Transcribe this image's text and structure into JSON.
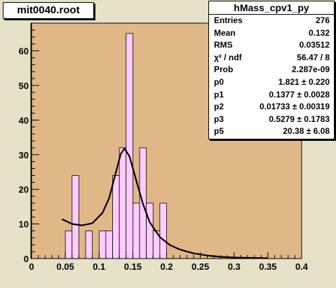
{
  "title_box": "mit0040.root",
  "stats": {
    "title": "hMass_cpv1_py",
    "rows": [
      {
        "k": "Entries",
        "v": "276"
      },
      {
        "k": "Mean",
        "v": "0.132"
      },
      {
        "k": "RMS",
        "v": "0.03512"
      },
      {
        "k": "χ² / ndf",
        "v": "56.47 / 8"
      },
      {
        "k": "Prob",
        "v": "2.287e-09"
      },
      {
        "k": "p0",
        "v": "1.821 ± 0.220"
      },
      {
        "k": "p1",
        "v": "0.1377 ± 0.0028"
      },
      {
        "k": "p2",
        "v": "0.01733 ± 0.00319"
      },
      {
        "k": "p3",
        "v": "0.5279 ± 0.1783"
      },
      {
        "k": "p5",
        "v": "20.38 ± 6.08"
      }
    ]
  },
  "colors": {
    "frame_bg": "#e0b888",
    "bar_fill": "#ffccff",
    "page_bg": "#e6e2c8"
  },
  "chart_data": {
    "type": "bar",
    "title": "",
    "xlabel": "",
    "ylabel": "",
    "xlim": [
      0,
      0.4
    ],
    "ylim": [
      0,
      68
    ],
    "x_ticks": [
      0,
      0.05,
      0.1,
      0.15,
      0.2,
      0.25,
      0.3,
      0.35,
      0.4
    ],
    "y_ticks": [
      0,
      10,
      20,
      30,
      40,
      50,
      60
    ],
    "bin_width": 0.01,
    "bins": [
      {
        "x": 0.05,
        "y": 8
      },
      {
        "x": 0.06,
        "y": 24
      },
      {
        "x": 0.07,
        "y": 0
      },
      {
        "x": 0.08,
        "y": 8
      },
      {
        "x": 0.09,
        "y": 0
      },
      {
        "x": 0.1,
        "y": 8
      },
      {
        "x": 0.11,
        "y": 8
      },
      {
        "x": 0.12,
        "y": 24
      },
      {
        "x": 0.13,
        "y": 32
      },
      {
        "x": 0.14,
        "y": 65
      },
      {
        "x": 0.15,
        "y": 16
      },
      {
        "x": 0.16,
        "y": 32
      },
      {
        "x": 0.17,
        "y": 16
      },
      {
        "x": 0.18,
        "y": 8
      },
      {
        "x": 0.19,
        "y": 16
      },
      {
        "x": 0.2,
        "y": 0
      }
    ],
    "fit": {
      "x_range": [
        0.045,
        0.35
      ],
      "x": [
        0.045,
        0.06,
        0.075,
        0.09,
        0.105,
        0.115,
        0.125,
        0.132,
        0.1377,
        0.145,
        0.155,
        0.165,
        0.175,
        0.19,
        0.205,
        0.22,
        0.24,
        0.26,
        0.28,
        0.3,
        0.32,
        0.35
      ],
      "y": [
        11.4,
        10.0,
        9.6,
        10.2,
        13.2,
        17.5,
        25.0,
        30.2,
        31.8,
        29.5,
        22.6,
        15.8,
        10.5,
        6.2,
        3.9,
        2.6,
        1.5,
        0.9,
        0.5,
        0.3,
        0.2,
        0.1
      ]
    }
  }
}
